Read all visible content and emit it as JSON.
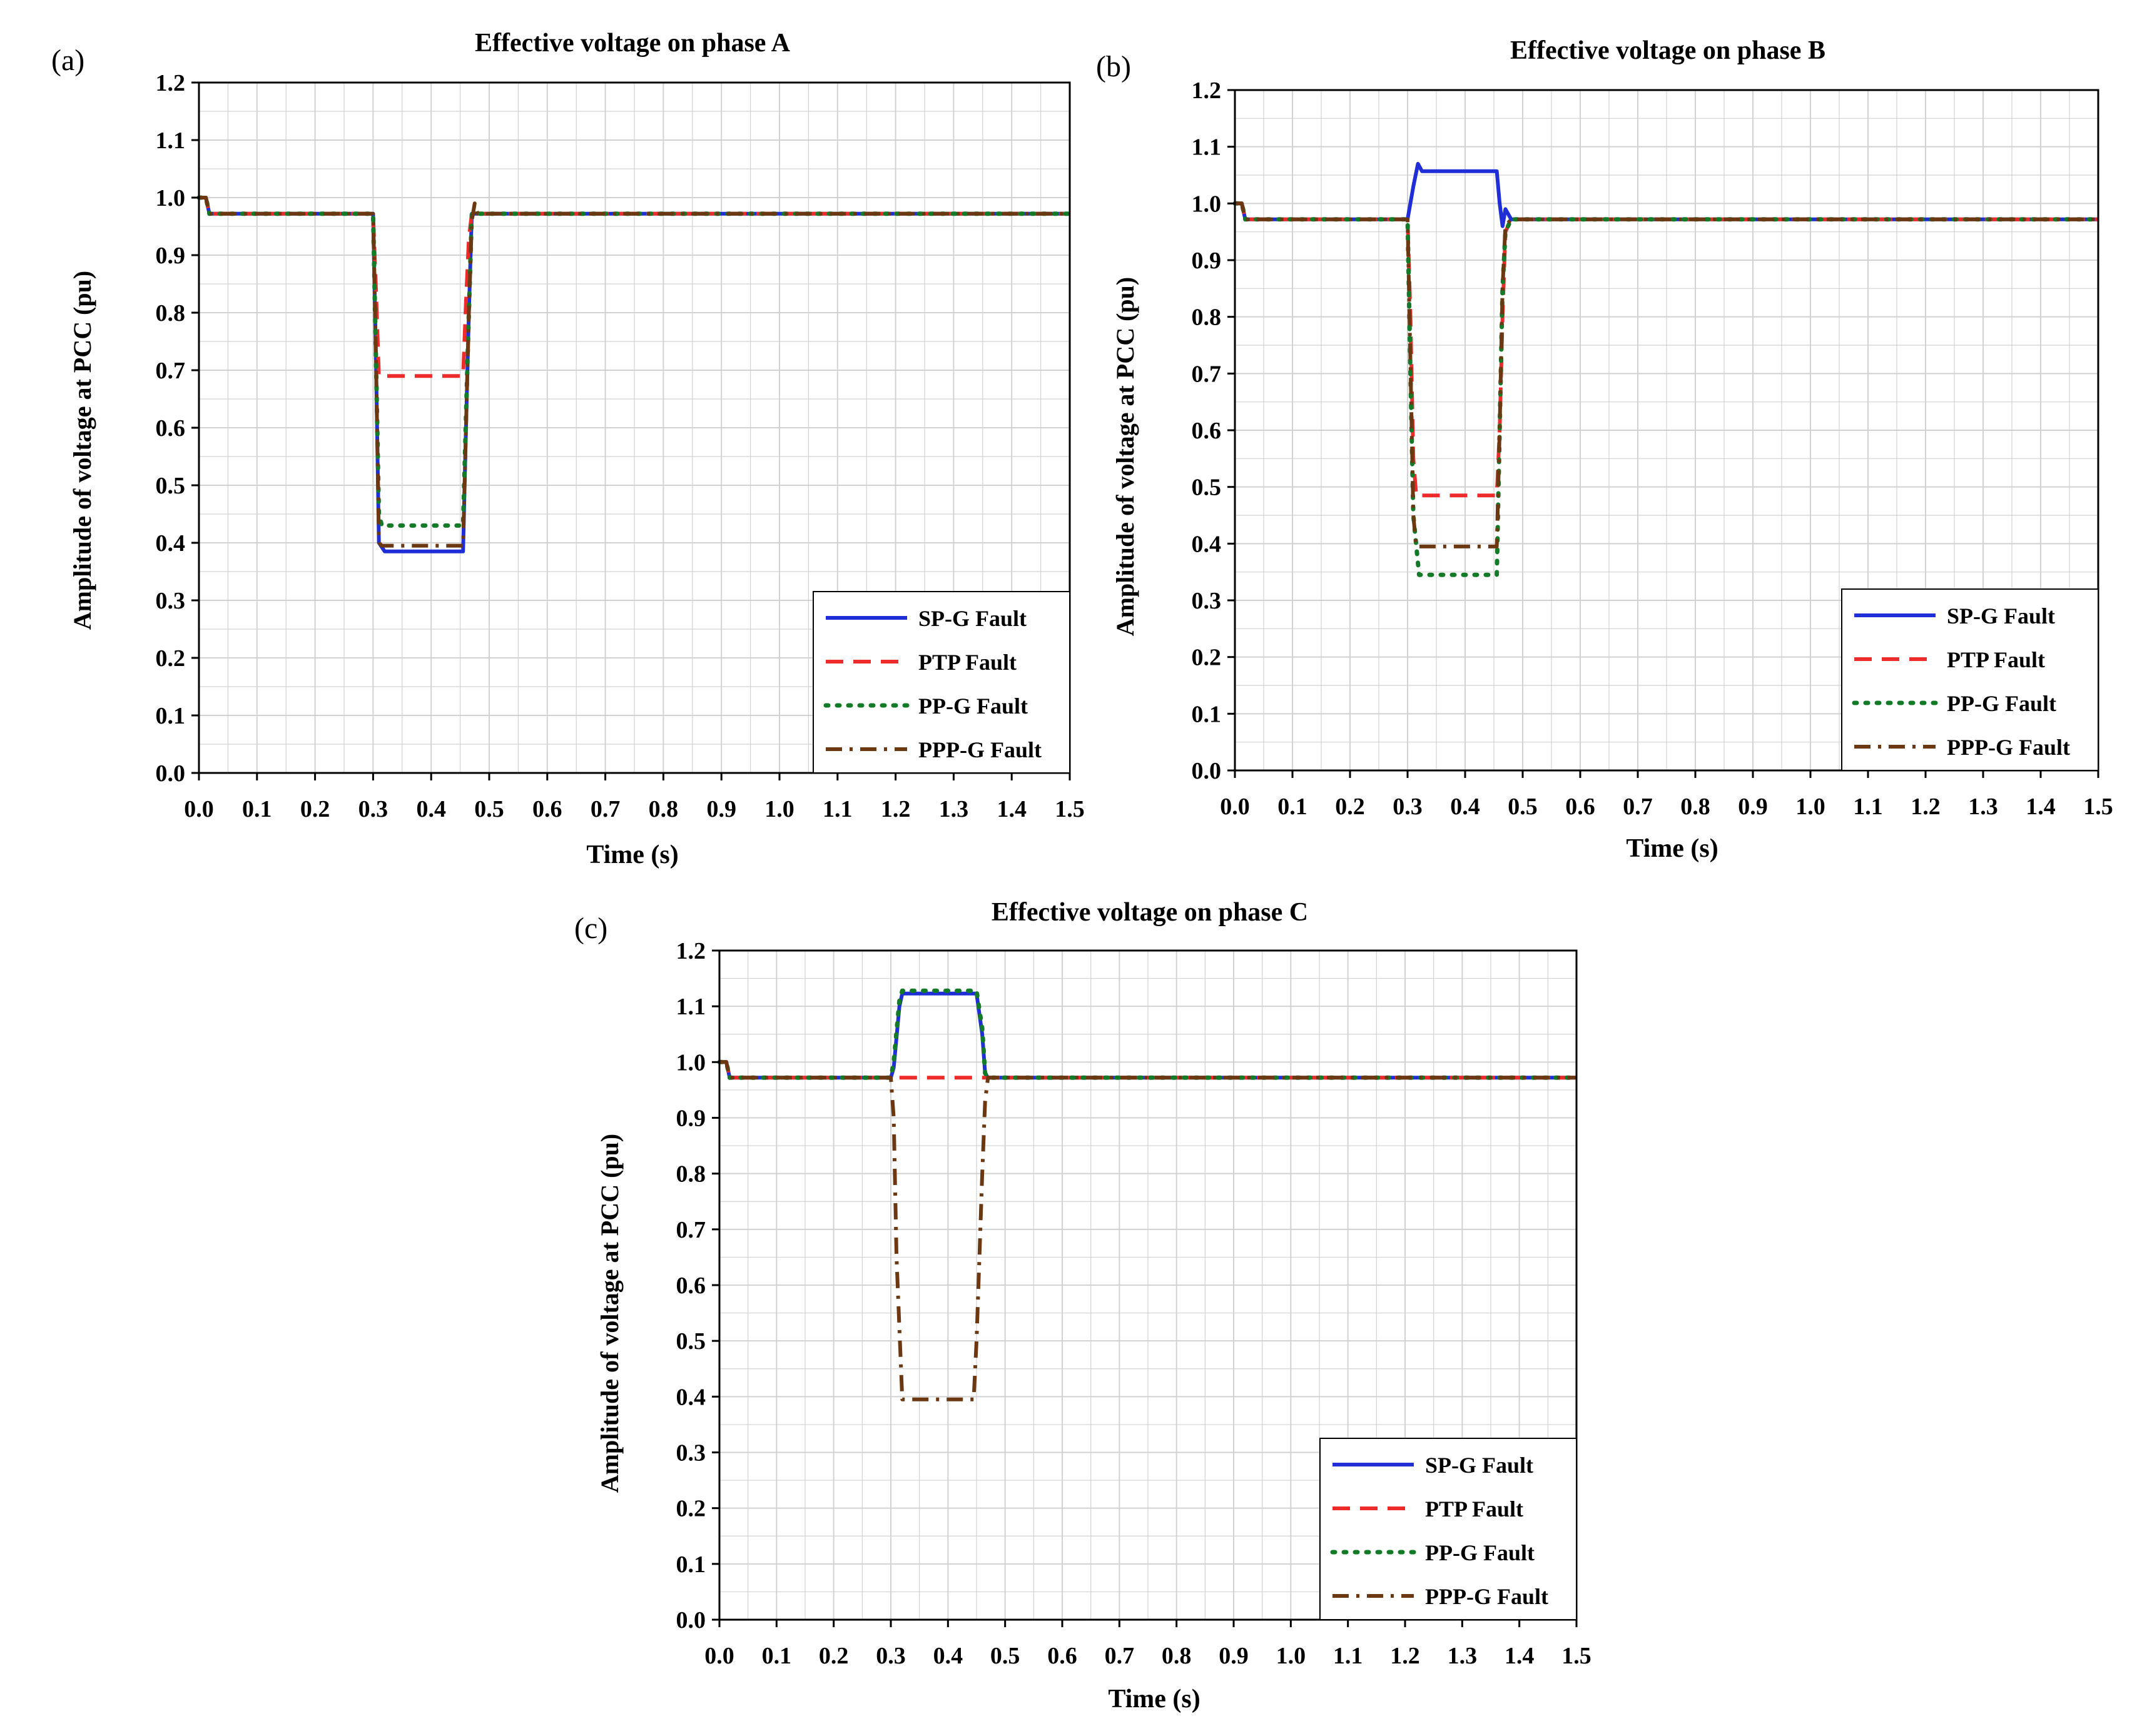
{
  "colors": {
    "sp_g": "#1f2ed6",
    "ptp": "#ee2b2b",
    "pp_g": "#137a28",
    "ppp_g": "#6b3812",
    "grid": "#d2d2d2",
    "axis": "#000000"
  },
  "chart_data": [
    {
      "type": "line",
      "panel_label": "(a)",
      "title": "Effective voltage on phase A",
      "xlabel": "Time (s)",
      "ylabel": "Amplitude of voltage at PCC (pu)",
      "xlim": [
        0,
        1.5
      ],
      "ylim": [
        0,
        1.2
      ],
      "xticks": [
        "0.0",
        "0.1",
        "0.2",
        "0.3",
        "0.4",
        "0.5",
        "0.6",
        "0.7",
        "0.8",
        "0.9",
        "1.0",
        "1.1",
        "1.2",
        "1.3",
        "1.4",
        "1.5"
      ],
      "yticks": [
        "0.0",
        "0.1",
        "0.2",
        "0.3",
        "0.4",
        "0.5",
        "0.6",
        "0.7",
        "0.8",
        "0.9",
        "1.0",
        "1.1",
        "1.2"
      ],
      "grid": true,
      "legend_position": "bottom-right",
      "series": [
        {
          "name": "SP-G Fault",
          "style": "solid",
          "color_key": "sp_g",
          "x": [
            0,
            0.012,
            0.018,
            0.3,
            0.305,
            0.31,
            0.32,
            0.455,
            0.46,
            0.465,
            0.47,
            0.48,
            1.5
          ],
          "y": [
            1.0,
            1.0,
            0.972,
            0.972,
            0.72,
            0.4,
            0.385,
            0.385,
            0.6,
            0.8,
            0.972,
            0.972,
            0.972
          ]
        },
        {
          "name": "PTP Fault",
          "style": "dashed",
          "color_key": "ptp",
          "x": [
            0,
            0.012,
            0.018,
            0.3,
            0.305,
            0.31,
            0.455,
            0.46,
            0.465,
            0.47,
            0.48,
            1.5
          ],
          "y": [
            1.0,
            1.0,
            0.972,
            0.972,
            0.84,
            0.69,
            0.69,
            0.82,
            0.93,
            0.972,
            0.972,
            0.972
          ]
        },
        {
          "name": "PP-G Fault",
          "style": "dotted",
          "color_key": "pp_g",
          "x": [
            0,
            0.012,
            0.018,
            0.3,
            0.305,
            0.31,
            0.315,
            0.455,
            0.46,
            0.465,
            0.47,
            0.48,
            1.5
          ],
          "y": [
            1.0,
            1.0,
            0.972,
            0.972,
            0.72,
            0.45,
            0.43,
            0.43,
            0.62,
            0.8,
            0.972,
            0.972,
            0.972
          ]
        },
        {
          "name": "PPP-G Fault",
          "style": "dashdot",
          "color_key": "ppp_g",
          "x": [
            0,
            0.012,
            0.018,
            0.3,
            0.305,
            0.31,
            0.315,
            0.455,
            0.46,
            0.465,
            0.47,
            0.475,
            0.48,
            1.5
          ],
          "y": [
            1.0,
            1.0,
            0.972,
            0.972,
            0.72,
            0.4,
            0.395,
            0.395,
            0.6,
            0.8,
            0.96,
            0.99,
            0.972,
            0.972
          ]
        }
      ]
    },
    {
      "type": "line",
      "panel_label": "(b)",
      "title": "Effective voltage on phase B",
      "xlabel": "Time (s)",
      "ylabel": "Amplitude of voltage at PCC (pu)",
      "xlim": [
        0,
        1.5
      ],
      "ylim": [
        0,
        1.2
      ],
      "xticks": [
        "0.0",
        "0.1",
        "0.2",
        "0.3",
        "0.4",
        "0.5",
        "0.6",
        "0.7",
        "0.8",
        "0.9",
        "1.0",
        "1.1",
        "1.2",
        "1.3",
        "1.4",
        "1.5"
      ],
      "yticks": [
        "0.0",
        "0.1",
        "0.2",
        "0.3",
        "0.4",
        "0.5",
        "0.6",
        "0.7",
        "0.8",
        "0.9",
        "1.0",
        "1.1",
        "1.2"
      ],
      "grid": true,
      "legend_position": "bottom-right",
      "series": [
        {
          "name": "SP-G Fault",
          "style": "solid",
          "color_key": "sp_g",
          "x": [
            0,
            0.012,
            0.018,
            0.3,
            0.31,
            0.318,
            0.325,
            0.455,
            0.46,
            0.465,
            0.47,
            0.48,
            1.5
          ],
          "y": [
            1.0,
            1.0,
            0.972,
            0.972,
            1.03,
            1.07,
            1.057,
            1.057,
            1.0,
            0.96,
            0.99,
            0.972,
            0.972
          ]
        },
        {
          "name": "PTP Fault",
          "style": "dashed",
          "color_key": "ptp",
          "x": [
            0,
            0.012,
            0.018,
            0.3,
            0.305,
            0.31,
            0.315,
            0.455,
            0.46,
            0.465,
            0.47,
            0.48,
            1.5
          ],
          "y": [
            1.0,
            1.0,
            0.972,
            0.972,
            0.8,
            0.55,
            0.485,
            0.485,
            0.6,
            0.8,
            0.95,
            0.972,
            0.972
          ]
        },
        {
          "name": "PP-G Fault",
          "style": "dotted",
          "color_key": "pp_g",
          "x": [
            0,
            0.012,
            0.018,
            0.3,
            0.305,
            0.31,
            0.32,
            0.455,
            0.46,
            0.465,
            0.47,
            0.48,
            1.5
          ],
          "y": [
            1.0,
            1.0,
            0.972,
            0.972,
            0.7,
            0.45,
            0.345,
            0.345,
            0.6,
            0.85,
            0.95,
            0.972,
            0.972
          ]
        },
        {
          "name": "PPP-G Fault",
          "style": "dashdot",
          "color_key": "ppp_g",
          "x": [
            0,
            0.012,
            0.018,
            0.3,
            0.305,
            0.31,
            0.315,
            0.455,
            0.46,
            0.465,
            0.47,
            0.48,
            1.5
          ],
          "y": [
            1.0,
            1.0,
            0.972,
            0.972,
            0.72,
            0.45,
            0.395,
            0.395,
            0.6,
            0.85,
            0.96,
            0.972,
            0.972
          ]
        }
      ]
    },
    {
      "type": "line",
      "panel_label": "(c)",
      "title": "Effective voltage on phase C",
      "xlabel": "Time (s)",
      "ylabel": "Amplitude of voltage at PCC (pu)",
      "xlim": [
        0,
        1.5
      ],
      "ylim": [
        0,
        1.2
      ],
      "xticks": [
        "0.0",
        "0.1",
        "0.2",
        "0.3",
        "0.4",
        "0.5",
        "0.6",
        "0.7",
        "0.8",
        "0.9",
        "1.0",
        "1.1",
        "1.2",
        "1.3",
        "1.4",
        "1.5"
      ],
      "yticks": [
        "0.0",
        "0.1",
        "0.2",
        "0.3",
        "0.4",
        "0.5",
        "0.6",
        "0.7",
        "0.8",
        "0.9",
        "1.0",
        "1.1",
        "1.2"
      ],
      "grid": true,
      "legend_position": "bottom-right",
      "series": [
        {
          "name": "SP-G Fault",
          "style": "solid",
          "color_key": "sp_g",
          "x": [
            0,
            0.012,
            0.018,
            0.3,
            0.305,
            0.315,
            0.32,
            0.45,
            0.46,
            0.465,
            0.47,
            1.5
          ],
          "y": [
            1.0,
            1.0,
            0.972,
            0.972,
            0.99,
            1.1,
            1.123,
            1.123,
            1.05,
            0.98,
            0.972,
            0.972
          ]
        },
        {
          "name": "PTP Fault",
          "style": "dashed",
          "color_key": "ptp",
          "x": [
            0,
            0.012,
            0.018,
            1.5
          ],
          "y": [
            1.0,
            1.0,
            0.972,
            0.972
          ]
        },
        {
          "name": "PP-G Fault",
          "style": "dotted",
          "color_key": "pp_g",
          "x": [
            0,
            0.012,
            0.018,
            0.3,
            0.305,
            0.315,
            0.32,
            0.45,
            0.46,
            0.465,
            0.47,
            1.5
          ],
          "y": [
            1.0,
            1.0,
            0.972,
            0.972,
            1.0,
            1.11,
            1.128,
            1.128,
            1.06,
            0.98,
            0.972,
            0.972
          ]
        },
        {
          "name": "PPP-G Fault",
          "style": "dashdot",
          "color_key": "ppp_g",
          "x": [
            0,
            0.012,
            0.018,
            0.3,
            0.305,
            0.31,
            0.32,
            0.445,
            0.45,
            0.455,
            0.46,
            0.465,
            0.47,
            1.5
          ],
          "y": [
            1.0,
            1.0,
            0.972,
            0.972,
            0.9,
            0.65,
            0.395,
            0.395,
            0.5,
            0.65,
            0.8,
            0.93,
            0.972,
            0.972
          ]
        }
      ]
    }
  ]
}
